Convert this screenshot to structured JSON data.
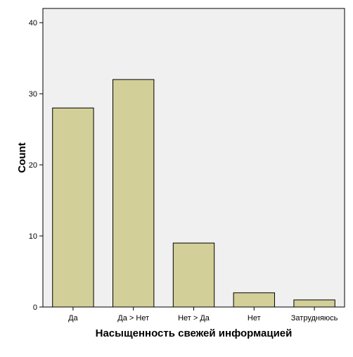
{
  "chart_data": {
    "type": "bar",
    "categories": [
      "Да",
      "Да > Нет",
      "Нет > Да",
      "Нет",
      "Затрудняюсь"
    ],
    "values": [
      28,
      32,
      9,
      2,
      1
    ],
    "xlabel": "Насыщенность свежей информацией",
    "ylabel": "Count",
    "ylim": [
      0,
      42
    ],
    "yticks": [
      0,
      10,
      20,
      30,
      40
    ],
    "grid": false,
    "legend": "none"
  },
  "colors": {
    "plot_background": "#f0f0f0",
    "bar_fill": "#d3cf98",
    "bar_stroke": "#000000",
    "axis": "#000000"
  }
}
